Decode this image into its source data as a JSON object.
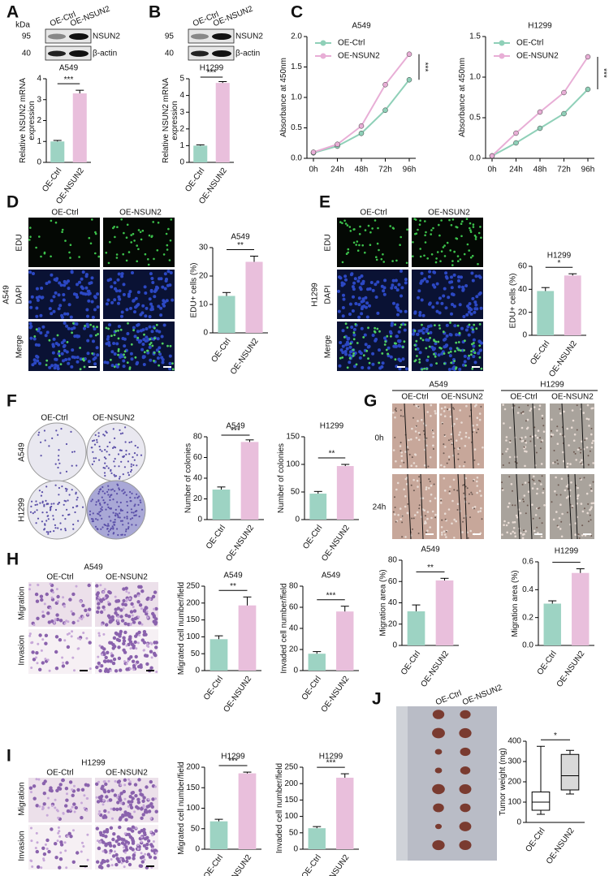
{
  "figure": {
    "panel_labels": [
      "A",
      "B",
      "C",
      "D",
      "E",
      "F",
      "G",
      "H",
      "I",
      "J"
    ],
    "blots": [
      {
        "unit": "kDa",
        "markers": [
          95,
          40
        ],
        "lanes": [
          "OE-Ctrl",
          "OE-NSUN2"
        ],
        "proteins": [
          "NSUN2",
          "β-actin"
        ]
      },
      {
        "markers": [
          95,
          40
        ],
        "lanes": [
          "OE-Ctrl",
          "OE-NSUN2"
        ],
        "proteins": [
          "NSUN2",
          "β-actin"
        ]
      }
    ],
    "edu": [
      {
        "cell_line": "A549",
        "columns": [
          "OE-Ctrl",
          "OE-NSUN2"
        ],
        "rows": [
          "EDU",
          "DAPI",
          "Merge"
        ]
      },
      {
        "cell_line": "H1299",
        "columns": [
          "OE-Ctrl",
          "OE-NSUN2"
        ],
        "rows": [
          "EDU",
          "DAPI",
          "Merge"
        ]
      }
    ],
    "colony": {
      "columns": [
        "OE-Ctrl",
        "OE-NSUN2"
      ],
      "rows": [
        "A549",
        "H1299"
      ]
    },
    "wound": {
      "groups": [
        {
          "title": "A549",
          "columns": [
            "OE-Ctrl",
            "OE-NSUN2"
          ]
        },
        {
          "title": "H1299",
          "columns": [
            "OE-Ctrl",
            "OE-NSUN2"
          ]
        }
      ],
      "rows": [
        "0h",
        "24h"
      ]
    },
    "transwell": [
      {
        "title": "A549",
        "columns": [
          "OE-Ctrl",
          "OE-NSUN2"
        ],
        "rows": [
          "Migration",
          "Invasion"
        ]
      },
      {
        "title": "H1299",
        "columns": [
          "OE-Ctrl",
          "OE-NSUN2"
        ],
        "rows": [
          "Migration",
          "Invasion"
        ]
      }
    ],
    "tumor": {
      "columns": [
        "OE-Ctrl",
        "OE-NSUN2"
      ]
    }
  },
  "chart_data": [
    {
      "type": "bar",
      "title": "A549",
      "ylabel": [
        "Relative NSUN2 mRNA",
        "expression"
      ],
      "categories": [
        "OE-Ctrl",
        "OE-NSUN2"
      ],
      "values": [
        1.0,
        3.3
      ],
      "errors": [
        0.05,
        0.15
      ],
      "colors": [
        "#9dd3c3",
        "#e9bfdc"
      ],
      "ylim": [
        0,
        4
      ],
      "yticks": [
        0,
        1,
        2,
        3,
        4
      ],
      "significance": "***"
    },
    {
      "type": "bar",
      "title": "H1299",
      "ylabel": [
        "Relative NSUN2 mRNA",
        "expression"
      ],
      "categories": [
        "OE-Ctrl",
        "OE-NSUN2"
      ],
      "values": [
        1.0,
        4.75
      ],
      "errors": [
        0.05,
        0.08
      ],
      "colors": [
        "#9dd3c3",
        "#e9bfdc"
      ],
      "ylim": [
        0,
        5
      ],
      "yticks": [
        0,
        1,
        2,
        3,
        4,
        5
      ],
      "significance": "***"
    },
    {
      "type": "line",
      "title": "A549",
      "ylabel": "Absorbance at 450nm",
      "x": [
        "0h",
        "24h",
        "48h",
        "72h",
        "96h"
      ],
      "series": [
        {
          "name": "OE-Ctrl",
          "color": "#8fd0b8",
          "values": [
            0.09,
            0.2,
            0.41,
            0.79,
            1.29
          ]
        },
        {
          "name": "OE-NSUN2",
          "color": "#e8aed6",
          "values": [
            0.1,
            0.23,
            0.53,
            1.21,
            1.71
          ]
        }
      ],
      "ylim": [
        0,
        2
      ],
      "yticks": [
        {
          "value": 0,
          "label": "0.0"
        },
        0.5,
        {
          "value": 1,
          "label": "1.0"
        },
        1.5,
        {
          "value": 2,
          "label": "2.0"
        }
      ],
      "significance": "***"
    },
    {
      "type": "line",
      "title": "H1299",
      "ylabel": "Absorbance at 450nm",
      "x": [
        "0h",
        "24h",
        "48h",
        "72h",
        "96h"
      ],
      "series": [
        {
          "name": "OE-Ctrl",
          "color": "#8fd0b8",
          "values": [
            0.03,
            0.19,
            0.37,
            0.55,
            0.85
          ]
        },
        {
          "name": "OE-NSUN2",
          "color": "#e8aed6",
          "values": [
            0.03,
            0.31,
            0.57,
            0.81,
            1.25
          ]
        }
      ],
      "ylim": [
        0,
        1.5
      ],
      "yticks": [
        {
          "value": 0,
          "label": "0.0"
        },
        0.5,
        {
          "value": 1,
          "label": "1.0"
        },
        1.5
      ],
      "significance": "***"
    },
    {
      "type": "bar",
      "title": "A549",
      "ylabel": "EDU+ cells (%)",
      "categories": [
        "OE-Ctrl",
        "OE-NSUN2"
      ],
      "values": [
        13,
        25
      ],
      "errors": [
        1.2,
        2
      ],
      "colors": [
        "#9dd3c3",
        "#e9bfdc"
      ],
      "ylim": [
        0,
        30
      ],
      "yticks": [
        0,
        10,
        20,
        30
      ],
      "significance": "**"
    },
    {
      "type": "bar",
      "title": "H1299",
      "ylabel": "EDU+ cells (%)",
      "categories": [
        "OE-Ctrl",
        "OE-NSUN2"
      ],
      "values": [
        38.5,
        52
      ],
      "errors": [
        3,
        1.5
      ],
      "colors": [
        "#9dd3c3",
        "#e9bfdc"
      ],
      "ylim": [
        0,
        60
      ],
      "yticks": [
        0,
        20,
        40,
        60
      ],
      "significance": "*"
    },
    {
      "type": "bar",
      "title": "A549",
      "ylabel": "Number of colonies",
      "categories": [
        "OE-Ctrl",
        "OE-NSUN2"
      ],
      "values": [
        29,
        75
      ],
      "errors": [
        2.5,
        2
      ],
      "colors": [
        "#9dd3c3",
        "#e9bfdc"
      ],
      "ylim": [
        0,
        80
      ],
      "yticks": [
        0,
        20,
        40,
        60,
        80
      ],
      "significance": "***"
    },
    {
      "type": "bar",
      "title": "H1299",
      "ylabel": "Number of colonies",
      "categories": [
        "OE-Ctrl",
        "OE-NSUN2"
      ],
      "values": [
        47,
        97
      ],
      "errors": [
        4,
        3
      ],
      "colors": [
        "#9dd3c3",
        "#e9bfdc"
      ],
      "ylim": [
        0,
        150
      ],
      "yticks": [
        0,
        50,
        100,
        150
      ],
      "significance": "**"
    },
    {
      "type": "bar",
      "title": "A549",
      "ylabel": "Migration area (%)",
      "categories": [
        "OE-Ctrl",
        "OE-NSUN2"
      ],
      "values": [
        32,
        61
      ],
      "errors": [
        6,
        2
      ],
      "colors": [
        "#9dd3c3",
        "#e9bfdc"
      ],
      "ylim": [
        0,
        80
      ],
      "yticks": [
        0,
        20,
        40,
        60,
        80
      ],
      "significance": "**"
    },
    {
      "type": "bar",
      "title": "H1299",
      "ylabel": "Migration area (%)",
      "categories": [
        "OE-Ctrl",
        "OE-NSUN2"
      ],
      "values": [
        0.3,
        0.52
      ],
      "errors": [
        0.02,
        0.03
      ],
      "colors": [
        "#9dd3c3",
        "#e9bfdc"
      ],
      "ylim": [
        0,
        0.6
      ],
      "yticks": [
        {
          "value": 0,
          "label": "0.0"
        },
        0.2,
        0.4,
        0.6
      ]
    },
    {
      "type": "bar",
      "title": "A549",
      "ylabel": "Migrated cell number/field",
      "categories": [
        "OE-Ctrl",
        "OE-NSUN2"
      ],
      "values": [
        93,
        193
      ],
      "errors": [
        10,
        25
      ],
      "colors": [
        "#9dd3c3",
        "#e9bfdc"
      ],
      "ylim": [
        0,
        250
      ],
      "yticks": [
        0,
        50,
        100,
        150,
        200,
        250
      ],
      "significance": "**"
    },
    {
      "type": "bar",
      "title": "A549",
      "ylabel": "Invaded cell number/field",
      "categories": [
        "OE-Ctrl",
        "OE-NSUN2"
      ],
      "values": [
        16,
        56
      ],
      "errors": [
        2,
        5
      ],
      "colors": [
        "#9dd3c3",
        "#e9bfdc"
      ],
      "ylim": [
        0,
        80
      ],
      "yticks": [
        0,
        20,
        40,
        60,
        80
      ],
      "significance": "***"
    },
    {
      "type": "bar",
      "title": "H1299",
      "ylabel": "Migrated cell number/field",
      "categories": [
        "OE-Ctrl",
        "OE-NSUN2"
      ],
      "values": [
        68,
        185
      ],
      "errors": [
        5,
        3
      ],
      "colors": [
        "#9dd3c3",
        "#e9bfdc"
      ],
      "ylim": [
        0,
        200
      ],
      "yticks": [
        0,
        50,
        100,
        150,
        200
      ],
      "significance": "***"
    },
    {
      "type": "bar",
      "title": "H1299",
      "ylabel": "Invaded cell number/field",
      "categories": [
        "OE-Ctrl",
        "OE-NSUN2"
      ],
      "values": [
        64,
        218
      ],
      "errors": [
        5,
        12
      ],
      "colors": [
        "#9dd3c3",
        "#e9bfdc"
      ],
      "ylim": [
        0,
        250
      ],
      "yticks": [
        0,
        50,
        100,
        150,
        200,
        250
      ],
      "significance": "***"
    },
    {
      "type": "box",
      "ylabel": "Tumor weight (mg)",
      "categories": [
        "OE-Ctrl",
        "OE-NSUN2"
      ],
      "boxes": [
        {
          "min": 40,
          "q1": 60,
          "median": 100,
          "q3": 150,
          "max": 375
        },
        {
          "min": 140,
          "q1": 160,
          "median": 230,
          "q3": 335,
          "max": 355
        }
      ],
      "colors": [
        "#ffffff",
        "#d9d9d9"
      ],
      "ylim": [
        0,
        400
      ],
      "yticks": [
        0,
        100,
        200,
        300,
        400
      ],
      "significance": "*"
    }
  ]
}
